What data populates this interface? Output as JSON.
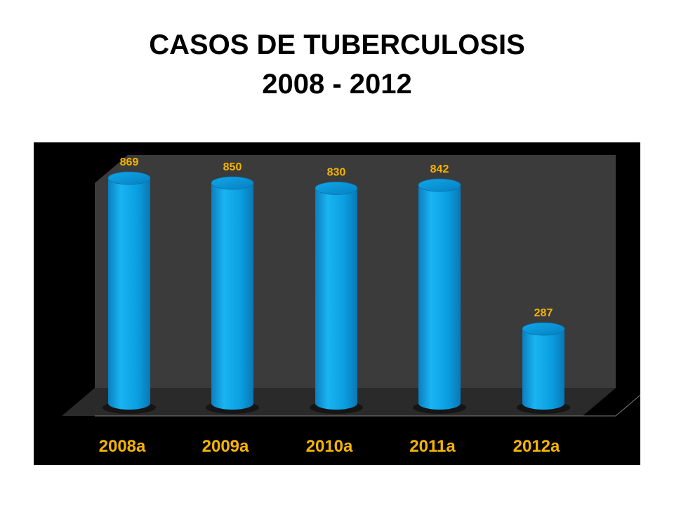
{
  "title": {
    "line1": "CASOS DE TUBERCULOSIS",
    "line2": "2008 - 2012"
  },
  "colors": {
    "background": "#ffffff",
    "plot_background": "#000000",
    "wall": "#3b3b3b",
    "floor": "#2a2a2a",
    "bar": "#0a9ee0",
    "label": "#f5b400"
  },
  "chart_data": {
    "type": "bar",
    "style": "3d-cylinder",
    "categories": [
      "2008a",
      "2009a",
      "2010a",
      "2011a",
      "2012a"
    ],
    "values": [
      869,
      850,
      830,
      842,
      287
    ],
    "data_labels": [
      "869",
      "850",
      "830",
      "842",
      "287"
    ],
    "ylim": [
      0,
      869
    ],
    "grid": false,
    "legend": "none",
    "xlabel": "",
    "ylabel": ""
  }
}
